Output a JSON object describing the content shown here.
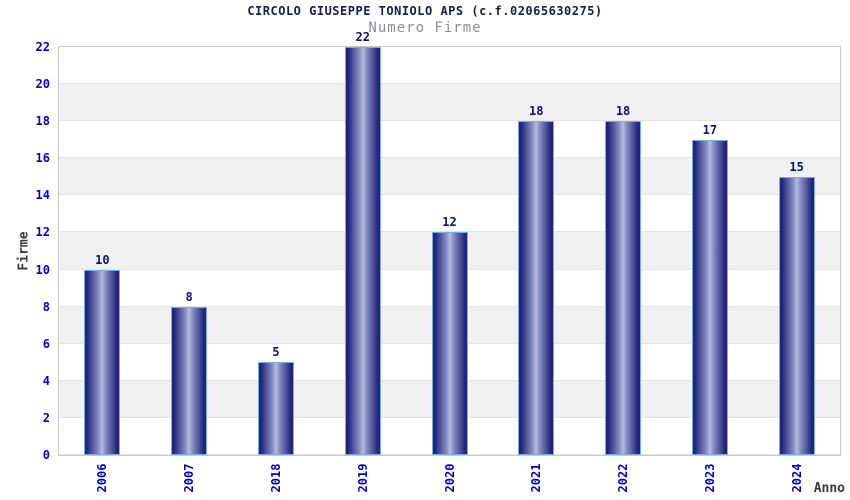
{
  "chart_data": {
    "type": "bar",
    "title": "CIRCOLO GIUSEPPE TONIOLO APS (c.f.02065630275)",
    "subtitle": "Numero Firme",
    "xlabel": "Anno",
    "ylabel": "Firme",
    "categories": [
      "2006",
      "2007",
      "2018",
      "2019",
      "2020",
      "2021",
      "2022",
      "2023",
      "2024"
    ],
    "values": [
      10,
      8,
      5,
      22,
      12,
      18,
      18,
      17,
      15
    ],
    "ylim": [
      0,
      22
    ],
    "yticks": [
      0,
      2,
      4,
      6,
      8,
      10,
      12,
      14,
      16,
      18,
      20,
      22
    ],
    "grid": "alternating-horizontal-bands",
    "legend_position": "none",
    "colors": {
      "bar_dark": "#23237b",
      "bar_mid": "#8890c4",
      "bar_light": "#b6bcde",
      "bar_border": "#7aaede",
      "tick_label_blue": "#0202cc",
      "value_label_navy": "#12126b",
      "title_navy": "#1b1b4e",
      "subtitle_gray": "#8d8d95",
      "band_gray": "#f0f0f0",
      "band_white": "#ffffff",
      "grid_line": "#e3e3e3",
      "plot_border": "#c9c9c9",
      "axis_name_gray": "#3a3a3a"
    }
  }
}
